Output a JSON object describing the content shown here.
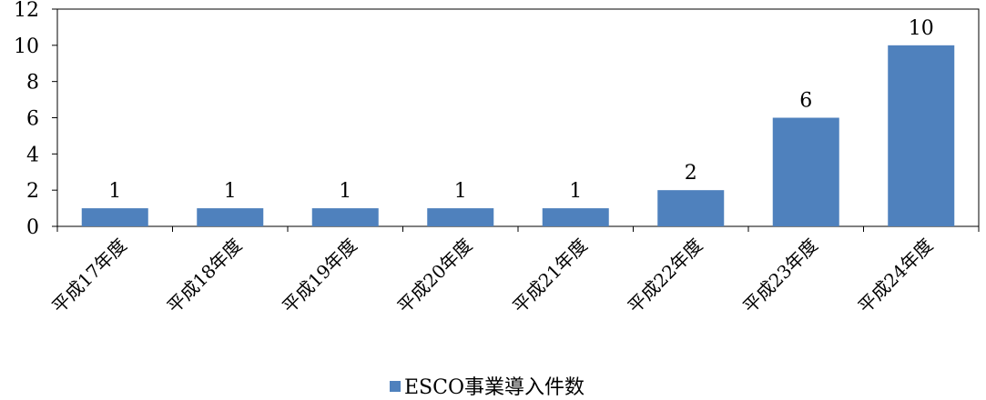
{
  "chart_data": {
    "type": "bar",
    "categories": [
      "平成17年度",
      "平成18年度",
      "平成19年度",
      "平成20年度",
      "平成21年度",
      "平成22年度",
      "平成23年度",
      "平成24年度"
    ],
    "series": [
      {
        "name": "ESCO事業導入件数",
        "values": [
          1,
          1,
          1,
          1,
          1,
          2,
          6,
          10
        ],
        "color": "#4F81BD"
      }
    ],
    "data_labels": [
      "1",
      "1",
      "1",
      "1",
      "1",
      "2",
      "6",
      "10"
    ],
    "yticks": [
      "0",
      "2",
      "4",
      "6",
      "8",
      "10",
      "12"
    ],
    "ylim": [
      0,
      12
    ],
    "grid": false,
    "legend": {
      "position": "bottom",
      "label": "ESCO事業導入件数"
    }
  }
}
